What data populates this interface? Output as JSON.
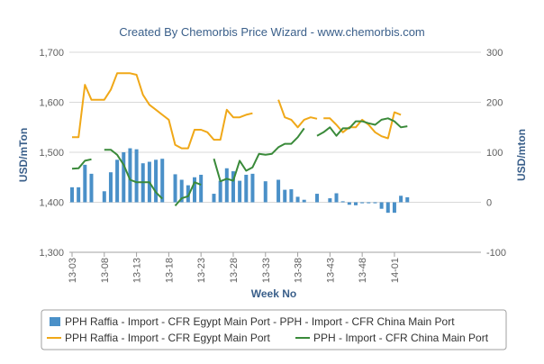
{
  "title": "Created By Chemorbis Price Wizard - www.chemorbis.com",
  "colors": {
    "bar": "#4a90c8",
    "line_egypt": "#f0a818",
    "line_china": "#3a8a3a",
    "grid": "#d8d8d8",
    "text": "#3a5f8a"
  },
  "chart_data": {
    "type": "bar+line",
    "xlabel": "Week No",
    "ylabel_left": "USD/mTon",
    "ylabel_right": "USD/mton",
    "ylim_left": [
      1300,
      1700
    ],
    "ylim_right": [
      -100,
      300
    ],
    "yticks_left": [
      "1,300",
      "1,400",
      "1,500",
      "1,600",
      "1,700"
    ],
    "yticks_right": [
      "-100",
      "0",
      "100",
      "200",
      "300"
    ],
    "x_range": [
      0,
      63
    ],
    "xticks": [
      {
        "label": "13-03",
        "x": 0
      },
      {
        "label": "13-08",
        "x": 5
      },
      {
        "label": "13-13",
        "x": 10
      },
      {
        "label": "13-18",
        "x": 15
      },
      {
        "label": "13-23",
        "x": 20
      },
      {
        "label": "13-28",
        "x": 25
      },
      {
        "label": "13-33",
        "x": 30
      },
      {
        "label": "13-38",
        "x": 35
      },
      {
        "label": "13-43",
        "x": 40
      },
      {
        "label": "13-48",
        "x": 45
      },
      {
        "label": "14-01",
        "x": 50
      }
    ],
    "bars": {
      "name": "PPH Raffia - Import - CFR Egypt Main Port - PPH - Import - CFR China Main Port",
      "axis": "right",
      "points": [
        [
          0,
          30
        ],
        [
          1,
          30
        ],
        [
          2,
          75
        ],
        [
          3,
          57
        ],
        [
          5,
          22
        ],
        [
          6,
          60
        ],
        [
          7,
          85
        ],
        [
          8,
          100
        ],
        [
          9,
          108
        ],
        [
          10,
          106
        ],
        [
          11,
          78
        ],
        [
          12,
          81
        ],
        [
          13,
          85
        ],
        [
          14,
          87
        ],
        [
          16,
          56
        ],
        [
          17,
          45
        ],
        [
          18,
          34
        ],
        [
          19,
          50
        ],
        [
          20,
          55
        ],
        [
          22,
          17
        ],
        [
          23,
          43
        ],
        [
          24,
          68
        ],
        [
          25,
          62
        ],
        [
          26,
          43
        ],
        [
          27,
          55
        ],
        [
          28,
          57
        ],
        [
          30,
          42
        ],
        [
          32,
          45
        ],
        [
          33,
          25
        ],
        [
          34,
          26
        ],
        [
          35,
          11
        ],
        [
          36,
          5
        ],
        [
          38,
          17
        ],
        [
          40,
          8
        ],
        [
          41,
          18
        ],
        [
          42,
          2
        ],
        [
          43,
          -5
        ],
        [
          44,
          -6
        ],
        [
          45,
          -2
        ],
        [
          46,
          -2
        ],
        [
          47,
          -2
        ],
        [
          48,
          -13
        ],
        [
          49,
          -21
        ],
        [
          50,
          -21
        ],
        [
          51,
          13
        ],
        [
          52,
          10
        ]
      ]
    },
    "series": [
      {
        "name": "PPH Raffia - Import - CFR Egypt Main Port",
        "axis": "left",
        "segments": [
          [
            [
              0,
              1530
            ],
            [
              1,
              1530
            ],
            [
              2,
              1635
            ],
            [
              3,
              1605
            ],
            [
              4,
              1605
            ],
            [
              5,
              1605
            ],
            [
              6,
              1625
            ],
            [
              7,
              1658
            ],
            [
              8,
              1658
            ],
            [
              9,
              1658
            ],
            [
              10,
              1655
            ],
            [
              11,
              1615
            ],
            [
              12,
              1595
            ],
            [
              13,
              1585
            ],
            [
              14,
              1575
            ],
            [
              15,
              1565
            ],
            [
              16,
              1515
            ],
            [
              17,
              1508
            ],
            [
              18,
              1508
            ],
            [
              19,
              1545
            ],
            [
              20,
              1545
            ],
            [
              21,
              1540
            ],
            [
              22,
              1525
            ],
            [
              23,
              1525
            ],
            [
              24,
              1585
            ],
            [
              25,
              1570
            ],
            [
              26,
              1570
            ],
            [
              27,
              1575
            ],
            [
              28,
              1578
            ]
          ],
          [
            [
              32,
              1605
            ],
            [
              33,
              1570
            ],
            [
              34,
              1565
            ],
            [
              35,
              1550
            ],
            [
              36,
              1565
            ],
            [
              37,
              1570
            ],
            [
              38,
              1567
            ]
          ],
          [
            [
              39,
              1568
            ],
            [
              40,
              1568
            ],
            [
              41,
              1555
            ],
            [
              42,
              1540
            ],
            [
              43,
              1550
            ],
            [
              44,
              1550
            ],
            [
              45,
              1565
            ],
            [
              46,
              1555
            ],
            [
              47,
              1540
            ],
            [
              48,
              1532
            ],
            [
              49,
              1528
            ],
            [
              50,
              1580
            ],
            [
              51,
              1575
            ]
          ]
        ]
      },
      {
        "name": "PPH - Import - CFR China Main Port",
        "axis": "left",
        "segments": [
          [
            [
              0,
              1467
            ],
            [
              1,
              1468
            ],
            [
              2,
              1483
            ],
            [
              3,
              1486
            ]
          ],
          [
            [
              5,
              1505
            ],
            [
              6,
              1505
            ],
            [
              7,
              1495
            ],
            [
              8,
              1475
            ],
            [
              9,
              1445
            ],
            [
              10,
              1440
            ],
            [
              11,
              1440
            ],
            [
              12,
              1440
            ],
            [
              13,
              1420
            ],
            [
              14,
              1407
            ]
          ],
          [
            [
              16,
              1393
            ],
            [
              17,
              1408
            ],
            [
              18,
              1412
            ],
            [
              19,
              1440
            ],
            [
              20,
              1435
            ]
          ],
          [
            [
              22,
              1487
            ],
            [
              23,
              1442
            ],
            [
              24,
              1447
            ],
            [
              25,
              1443
            ],
            [
              26,
              1483
            ],
            [
              27,
              1463
            ],
            [
              28,
              1470
            ],
            [
              29,
              1497
            ],
            [
              30,
              1495
            ],
            [
              31,
              1497
            ],
            [
              32,
              1510
            ],
            [
              33,
              1517
            ],
            [
              34,
              1517
            ],
            [
              35,
              1530
            ],
            [
              36,
              1548
            ]
          ],
          [
            [
              38,
              1533
            ],
            [
              39,
              1540
            ],
            [
              40,
              1550
            ],
            [
              41,
              1533
            ],
            [
              42,
              1548
            ],
            [
              43,
              1548
            ],
            [
              44,
              1562
            ],
            [
              45,
              1562
            ],
            [
              46,
              1558
            ],
            [
              47,
              1555
            ],
            [
              48,
              1565
            ],
            [
              49,
              1568
            ],
            [
              50,
              1562
            ],
            [
              51,
              1550
            ],
            [
              52,
              1552
            ]
          ]
        ]
      }
    ],
    "legend": {
      "placement": "bottom",
      "items": [
        {
          "label": "PPH Raffia - Import - CFR Egypt Main Port - PPH - Import - CFR China Main Port",
          "kind": "bar"
        },
        {
          "label": "PPH Raffia - Import - CFR Egypt Main Port",
          "kind": "line-egypt"
        },
        {
          "label": "PPH - Import - CFR China Main Port",
          "kind": "line-china"
        }
      ]
    },
    "grid": true
  }
}
